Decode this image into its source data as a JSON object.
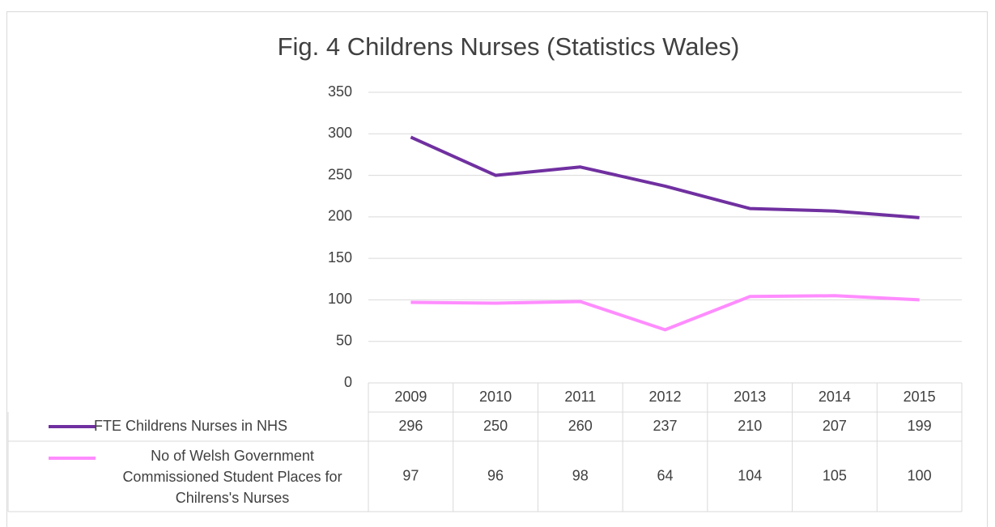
{
  "chart_data": {
    "type": "line",
    "title": "Fig. 4 Childrens Nurses (Statistics Wales)",
    "categories": [
      "2009",
      "2010",
      "2011",
      "2012",
      "2013",
      "2014",
      "2015"
    ],
    "series": [
      {
        "name": "FTE Childrens Nurses in NHS",
        "color": "#7030a0",
        "values": [
          296,
          250,
          260,
          237,
          210,
          207,
          199
        ]
      },
      {
        "name": "No of Welsh Government Commissioned Student Places for Chilrens's Nurses",
        "color": "#ff8cff",
        "values": [
          97,
          96,
          98,
          64,
          104,
          105,
          100
        ]
      }
    ],
    "ylim": [
      0,
      350
    ],
    "yticks": [
      0,
      50,
      100,
      150,
      200,
      250,
      300,
      350
    ],
    "grid": true
  }
}
